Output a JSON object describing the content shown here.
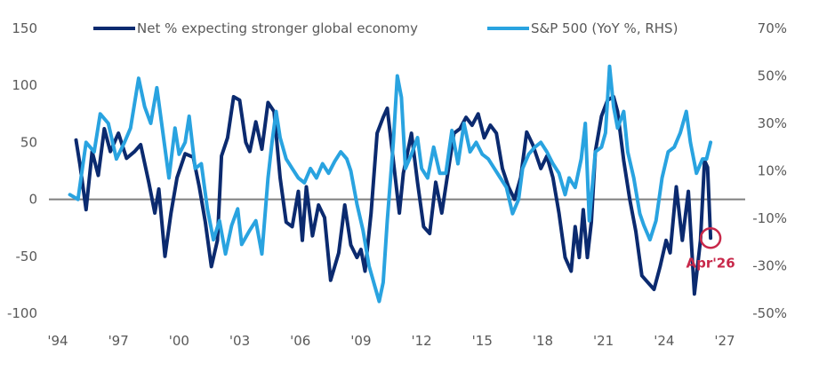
{
  "chart_data": {
    "type": "line",
    "title": "",
    "xlabel": "",
    "ylabel_left": "",
    "ylabel_right": "",
    "legend_position": "top",
    "grid": false,
    "x_range": [
      1994,
      2027
    ],
    "x_ticks": [
      1994,
      1997,
      2000,
      2003,
      2006,
      2009,
      2012,
      2015,
      2018,
      2021,
      2024,
      2027
    ],
    "x_tick_labels": [
      "'94",
      "'97",
      "'00",
      "'03",
      "'06",
      "'09",
      "'12",
      "'15",
      "'18",
      "'21",
      "'24",
      "'27"
    ],
    "y_left": {
      "range": [
        -100,
        150
      ],
      "ticks": [
        150,
        100,
        50,
        0,
        -50,
        -100
      ],
      "tick_labels": [
        "150",
        "100",
        "50",
        "0",
        "-50",
        "-100"
      ]
    },
    "y_right": {
      "range": [
        -50,
        70
      ],
      "ticks": [
        70,
        50,
        30,
        10,
        -10,
        -30,
        -50
      ],
      "tick_labels": [
        "70%",
        "50%",
        "30%",
        "10%",
        "-10%",
        "-30%",
        "-50%"
      ]
    },
    "series": [
      {
        "name": "Net % expecting stronger global economy",
        "axis": "left",
        "color": "#0b2a6f",
        "x": [
          1994.9,
          1995.1,
          1995.4,
          1995.7,
          1996.0,
          1996.3,
          1996.6,
          1997.0,
          1997.4,
          1997.8,
          1998.1,
          1998.5,
          1998.8,
          1999.0,
          1999.3,
          1999.6,
          1999.9,
          2000.3,
          2000.7,
          2001.0,
          2001.3,
          2001.6,
          2001.9,
          2002.1,
          2002.4,
          2002.7,
          2003.0,
          2003.3,
          2003.5,
          2003.8,
          2004.1,
          2004.4,
          2004.7,
          2005.0,
          2005.3,
          2005.6,
          2005.9,
          2006.1,
          2006.3,
          2006.6,
          2006.9,
          2007.2,
          2007.5,
          2007.9,
          2008.2,
          2008.5,
          2008.8,
          2009.0,
          2009.2,
          2009.5,
          2009.8,
          2010.1,
          2010.3,
          2010.6,
          2010.9,
          2011.1,
          2011.5,
          2011.8,
          2012.1,
          2012.4,
          2012.7,
          2013.0,
          2013.3,
          2013.6,
          2013.9,
          2014.2,
          2014.5,
          2014.8,
          2015.1,
          2015.4,
          2015.7,
          2016.0,
          2016.3,
          2016.6,
          2016.9,
          2017.2,
          2017.5,
          2017.9,
          2018.2,
          2018.5,
          2018.8,
          2019.1,
          2019.4,
          2019.6,
          2019.8,
          2020.0,
          2020.2,
          2020.4,
          2020.6,
          2020.9,
          2021.2,
          2021.5,
          2021.7,
          2022.0,
          2022.3,
          2022.6,
          2022.9,
          2023.2,
          2023.5,
          2023.8,
          2024.1,
          2024.3,
          2024.6,
          2024.9,
          2025.2,
          2025.5,
          2025.8,
          2026.0,
          2026.15,
          2026.3
        ],
        "values": [
          52,
          30,
          -9,
          42,
          21,
          62,
          42,
          58,
          36,
          42,
          48,
          15,
          -12,
          9,
          -50,
          -12,
          19,
          40,
          37,
          11,
          -20,
          -59,
          -36,
          38,
          54,
          90,
          87,
          50,
          42,
          68,
          44,
          85,
          77,
          19,
          -20,
          -24,
          7,
          -36,
          11,
          -32,
          -5,
          -16,
          -71,
          -47,
          -5,
          -40,
          -51,
          -44,
          -63,
          -12,
          58,
          72,
          80,
          34,
          -12,
          23,
          58,
          15,
          -24,
          -30,
          15,
          -12,
          23,
          58,
          62,
          72,
          65,
          75,
          54,
          65,
          58,
          27,
          11,
          0,
          19,
          59,
          48,
          27,
          38,
          19,
          -12,
          -51,
          -63,
          -24,
          -51,
          -9,
          -51,
          -20,
          42,
          73,
          87,
          90,
          77,
          34,
          0,
          -28,
          -67,
          -73,
          -79,
          -59,
          -36,
          -47,
          11,
          -36,
          7,
          -83,
          -36,
          34,
          28,
          -34
        ]
      },
      {
        "name": "S&P 500 (YoY %, RHS)",
        "axis": "right",
        "color": "#29a3e0",
        "x": [
          1994.6,
          1995.0,
          1995.4,
          1995.8,
          1996.1,
          1996.5,
          1996.9,
          1997.3,
          1997.6,
          1998.0,
          1998.3,
          1998.6,
          1998.9,
          1999.2,
          1999.5,
          1999.8,
          2000.0,
          2000.3,
          2000.5,
          2000.8,
          2001.1,
          2001.4,
          2001.7,
          2002.0,
          2002.3,
          2002.6,
          2002.9,
          2003.1,
          2003.5,
          2003.8,
          2004.1,
          2004.4,
          2004.6,
          2004.8,
          2005.0,
          2005.3,
          2005.6,
          2005.9,
          2006.2,
          2006.5,
          2006.8,
          2007.1,
          2007.4,
          2007.7,
          2008.0,
          2008.3,
          2008.5,
          2008.8,
          2009.1,
          2009.4,
          2009.7,
          2009.9,
          2010.1,
          2010.3,
          2010.6,
          2010.8,
          2011.0,
          2011.2,
          2011.5,
          2011.8,
          2012.0,
          2012.3,
          2012.6,
          2012.9,
          2013.2,
          2013.5,
          2013.8,
          2014.1,
          2014.4,
          2014.7,
          2015.0,
          2015.3,
          2015.6,
          2015.9,
          2016.2,
          2016.5,
          2016.8,
          2017.0,
          2017.3,
          2017.6,
          2017.9,
          2018.2,
          2018.5,
          2018.8,
          2019.1,
          2019.3,
          2019.6,
          2019.9,
          2020.1,
          2020.3,
          2020.6,
          2020.9,
          2021.1,
          2021.3,
          2021.5,
          2021.7,
          2022.0,
          2022.2,
          2022.5,
          2022.8,
          2023.0,
          2023.3,
          2023.6,
          2023.9,
          2024.2,
          2024.5,
          2024.8,
          2025.1,
          2025.3,
          2025.6,
          2025.9,
          2026.1,
          2026.3
        ],
        "values": [
          0,
          -2,
          22,
          18,
          34,
          30,
          15,
          22,
          28,
          49,
          37,
          30,
          45,
          26,
          7,
          28,
          17,
          22,
          33,
          11,
          13,
          -6,
          -19,
          -11,
          -25,
          -13,
          -6,
          -21,
          -15,
          -11,
          -25,
          7,
          22,
          35,
          24,
          15,
          11,
          7,
          5,
          11,
          7,
          13,
          9,
          14,
          18,
          15,
          10,
          -4,
          -15,
          -30,
          -39,
          -45,
          -37,
          -11,
          22,
          50,
          41,
          11,
          17,
          24,
          11,
          7,
          20,
          9,
          9,
          27,
          13,
          30,
          18,
          22,
          17,
          15,
          11,
          7,
          3,
          -8,
          -2,
          11,
          17,
          20,
          22,
          18,
          13,
          9,
          0,
          7,
          3,
          15,
          30,
          -11,
          18,
          20,
          26,
          54,
          37,
          28,
          35,
          18,
          7,
          -8,
          -13,
          -19,
          -11,
          7,
          18,
          20,
          26,
          35,
          22,
          9,
          15,
          15,
          22
        ]
      }
    ],
    "annotations": [
      {
        "label": "Apr'26",
        "x": 2026.3,
        "series": "Net % expecting stronger global economy",
        "value": -34,
        "style": "circle",
        "color": "#c8284a"
      }
    ]
  }
}
